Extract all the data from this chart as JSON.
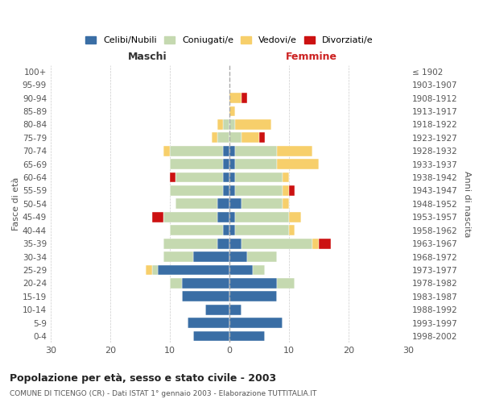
{
  "age_groups": [
    "0-4",
    "5-9",
    "10-14",
    "15-19",
    "20-24",
    "25-29",
    "30-34",
    "35-39",
    "40-44",
    "45-49",
    "50-54",
    "55-59",
    "60-64",
    "65-69",
    "70-74",
    "75-79",
    "80-84",
    "85-89",
    "90-94",
    "95-99",
    "100+"
  ],
  "birth_years": [
    "1998-2002",
    "1993-1997",
    "1988-1992",
    "1983-1987",
    "1978-1982",
    "1973-1977",
    "1968-1972",
    "1963-1967",
    "1958-1962",
    "1953-1957",
    "1948-1952",
    "1943-1947",
    "1938-1942",
    "1933-1937",
    "1928-1932",
    "1923-1927",
    "1918-1922",
    "1913-1917",
    "1908-1912",
    "1903-1907",
    "≤ 1902"
  ],
  "maschi": {
    "celibi": [
      6,
      7,
      4,
      8,
      8,
      12,
      6,
      2,
      1,
      2,
      2,
      1,
      1,
      1,
      1,
      0,
      0,
      0,
      0,
      0,
      0
    ],
    "coniugati": [
      0,
      0,
      0,
      0,
      2,
      1,
      5,
      9,
      9,
      9,
      7,
      9,
      8,
      9,
      9,
      2,
      1,
      0,
      0,
      0,
      0
    ],
    "vedovi": [
      0,
      0,
      0,
      0,
      0,
      1,
      0,
      0,
      0,
      0,
      0,
      0,
      0,
      0,
      1,
      1,
      1,
      0,
      0,
      0,
      0
    ],
    "divorziati": [
      0,
      0,
      0,
      0,
      0,
      0,
      0,
      0,
      0,
      2,
      0,
      0,
      1,
      0,
      0,
      0,
      0,
      0,
      0,
      0,
      0
    ]
  },
  "femmine": {
    "nubili": [
      6,
      9,
      2,
      8,
      8,
      4,
      3,
      2,
      1,
      1,
      2,
      1,
      1,
      1,
      1,
      0,
      0,
      0,
      0,
      0,
      0
    ],
    "coniugate": [
      0,
      0,
      0,
      0,
      3,
      2,
      5,
      12,
      9,
      9,
      7,
      8,
      8,
      7,
      7,
      2,
      1,
      0,
      0,
      0,
      0
    ],
    "vedove": [
      0,
      0,
      0,
      0,
      0,
      0,
      0,
      1,
      1,
      2,
      1,
      1,
      1,
      7,
      6,
      3,
      6,
      1,
      2,
      0,
      0
    ],
    "divorziate": [
      0,
      0,
      0,
      0,
      0,
      0,
      0,
      2,
      0,
      0,
      0,
      1,
      0,
      0,
      0,
      1,
      0,
      0,
      1,
      0,
      0
    ]
  },
  "colors": {
    "celibi": "#3a6ea5",
    "coniugati": "#c5d9b0",
    "vedovi": "#f7cf6b",
    "divorziati": "#cc1111"
  },
  "xlim": 30,
  "title": "Popolazione per età, sesso e stato civile - 2003",
  "subtitle": "COMUNE DI TICENGO (CR) - Dati ISTAT 1° gennaio 2003 - Elaborazione TUTTITALIA.IT",
  "ylabel_left": "Fasce di età",
  "ylabel_right": "Anni di nascita",
  "xlabel_left": "Maschi",
  "xlabel_right": "Femmine",
  "legend_labels": [
    "Celibi/Nubili",
    "Coniugati/e",
    "Vedovi/e",
    "Divorziati/e"
  ],
  "background_color": "#ffffff",
  "grid_color": "#cccccc"
}
